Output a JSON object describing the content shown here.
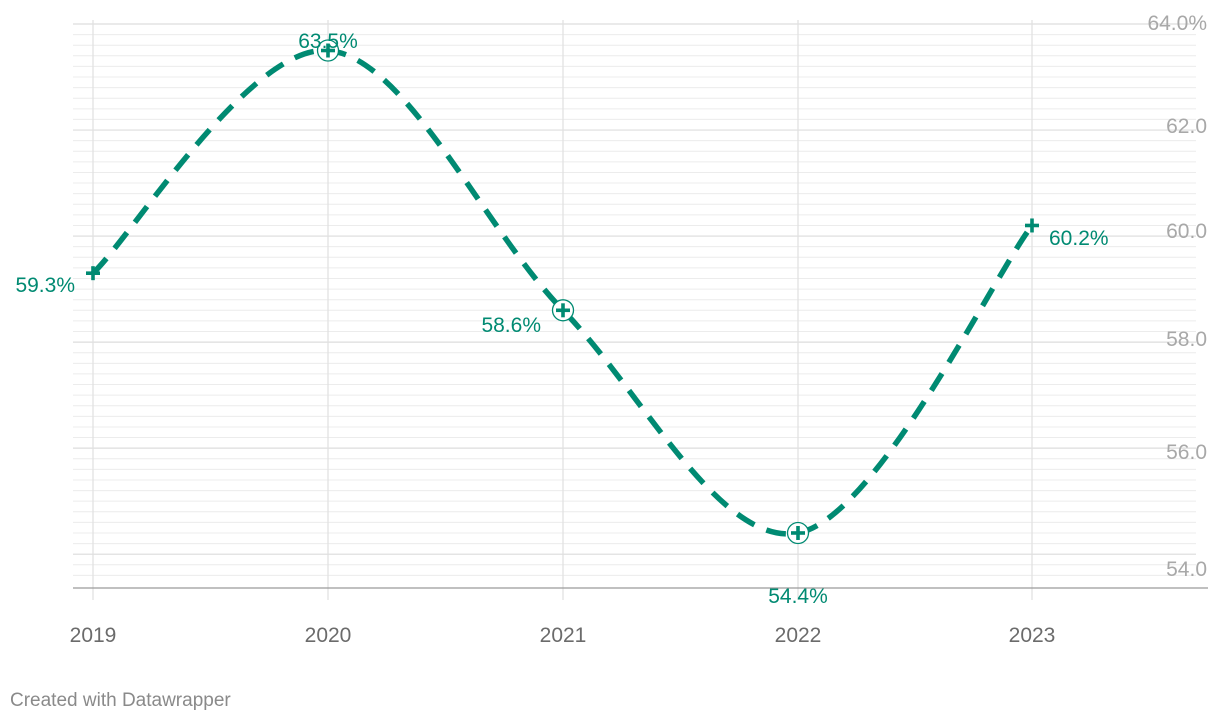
{
  "chart_data": {
    "type": "line",
    "title": "",
    "xlabel": "",
    "ylabel": "",
    "x": [
      "2019",
      "2020",
      "2021",
      "2022",
      "2023"
    ],
    "series": [
      {
        "values": [
          59.3,
          63.5,
          58.6,
          54.4,
          60.2
        ],
        "color": "#008a72"
      }
    ],
    "data_labels": [
      "59.3%",
      "63.5%",
      "58.6%",
      "54.4%",
      "60.2%"
    ],
    "ylim": [
      53.4,
      64.0
    ],
    "y_ticks": [
      "54.0",
      "56.0",
      "58.0",
      "60.0",
      "62.0",
      "64.0%"
    ],
    "y_axis_side": "right",
    "line_style": "dashed",
    "marker": "plus",
    "grid": true
  },
  "footer": {
    "credit": "Created with Datawrapper"
  }
}
